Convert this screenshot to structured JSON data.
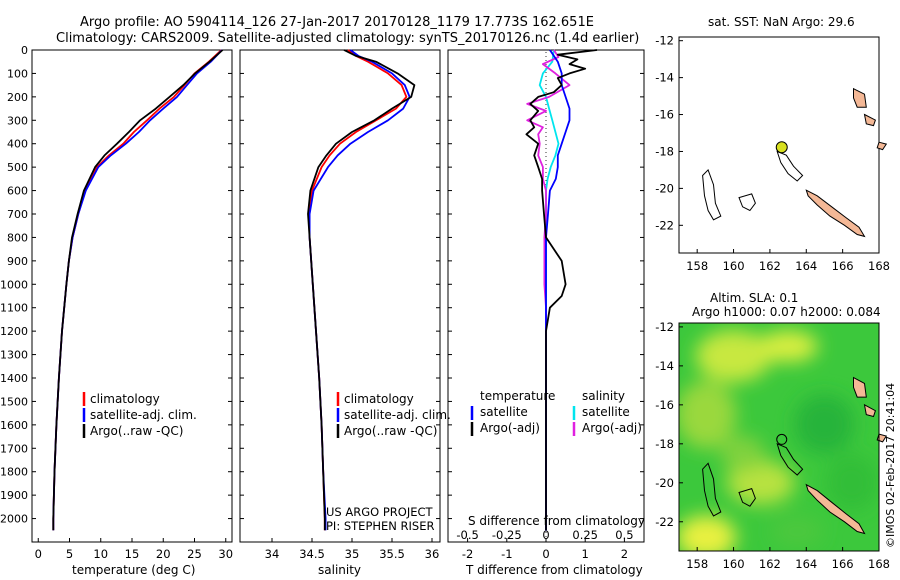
{
  "header": {
    "line1": "Argo profile: AO 5904114_126 27-Jan-2017 20170128_1179 17.773S 162.651E",
    "line2": "Climatology: CARS2009. Satellite-adjusted climatology: synTS_20170126.nc (1.4d earlier)"
  },
  "credit": {
    "line1": "US ARGO PROJECT",
    "line2": "PI: STEPHEN RISER",
    "imos": "©IMOS 02-Feb-2017 20:41:04"
  },
  "legends": {
    "profile": [
      "climatology",
      "satellite-adj. clim.",
      "Argo(..raw -QC)"
    ],
    "diff_temperature_title": "temperature",
    "diff_salinity_title": "salinity",
    "diff_satellite": "satellite",
    "diff_argo": "Argo(-adj)"
  },
  "maps": {
    "sst_title": "sat. SST: NaN Argo: 29.6",
    "sla_title1": "Altim. SLA: 0.1",
    "sla_title2": "Argo h1000: 0.07 h2000: 0.084"
  },
  "colors": {
    "climatology": "#ff0000",
    "satellite": "#0000ff",
    "argo": "#000000",
    "sat_salinity": "#00e5ee",
    "argo_salinity": "#e020e0",
    "land": "#f4b896",
    "float_marker": "#d8e020",
    "sla_green": "#3cc83c",
    "sla_yellow": "#e8f040"
  },
  "chart_data": [
    {
      "type": "line",
      "title": "",
      "xlabel": "temperature (deg C)",
      "ylabel": "",
      "xlim": [
        -1,
        31
      ],
      "ylim": [
        2100,
        0
      ],
      "x_ticks": [
        0,
        5,
        10,
        15,
        20,
        25,
        30
      ],
      "y_ticks": [
        0,
        100,
        200,
        300,
        400,
        500,
        600,
        700,
        800,
        900,
        1000,
        1100,
        1200,
        1300,
        1400,
        1500,
        1600,
        1700,
        1800,
        1900,
        2000
      ],
      "series": [
        {
          "name": "climatology",
          "depth": [
            0,
            50,
            100,
            150,
            200,
            250,
            300,
            350,
            400,
            450,
            500,
            600,
            700,
            800,
            900,
            1000,
            1200,
            1400,
            1600,
            1800,
            2000,
            2050
          ],
          "values": [
            29.3,
            27.3,
            25.0,
            23.4,
            21.7,
            19.4,
            17.4,
            15.3,
            13.6,
            11.3,
            9.4,
            7.5,
            6.4,
            5.5,
            4.9,
            4.5,
            3.8,
            3.3,
            2.9,
            2.6,
            2.4,
            2.4
          ]
        },
        {
          "name": "satellite-adj. clim.",
          "depth": [
            0,
            50,
            100,
            150,
            200,
            250,
            300,
            350,
            400,
            450,
            500,
            600,
            700,
            800,
            900,
            1000,
            1200,
            1400,
            1600,
            1800,
            2000,
            2050
          ],
          "values": [
            29.4,
            27.6,
            25.4,
            23.8,
            22.2,
            20.0,
            17.9,
            16.1,
            14.0,
            11.6,
            9.6,
            7.6,
            6.4,
            5.5,
            4.9,
            4.5,
            3.8,
            3.3,
            2.9,
            2.6,
            2.4,
            2.4
          ]
        },
        {
          "name": "Argo(..raw -QC)",
          "depth": [
            0,
            50,
            100,
            150,
            200,
            250,
            300,
            350,
            400,
            450,
            500,
            600,
            700,
            800,
            900,
            1000,
            1200,
            1400,
            1600,
            1800,
            2000,
            2050
          ],
          "values": [
            29.5,
            27.4,
            25.1,
            23.2,
            21.0,
            18.8,
            16.3,
            14.5,
            12.6,
            10.6,
            9.1,
            7.3,
            6.3,
            5.4,
            4.9,
            4.5,
            3.8,
            3.3,
            2.9,
            2.6,
            2.4,
            2.4
          ]
        }
      ]
    },
    {
      "type": "line",
      "title": "",
      "xlabel": "salinity",
      "ylabel": "",
      "xlim": [
        33.6,
        36.1
      ],
      "ylim": [
        2100,
        0
      ],
      "x_ticks": [
        34,
        34.5,
        35,
        35.5,
        36
      ],
      "x_tick_labels": [
        "34",
        "34.5",
        "35",
        "35.5",
        "36"
      ],
      "series": [
        {
          "name": "climatology",
          "depth": [
            0,
            25,
            50,
            100,
            150,
            200,
            250,
            300,
            350,
            400,
            450,
            500,
            600,
            700,
            800,
            900,
            1000,
            1200,
            1400,
            1600,
            1800,
            2000,
            2050
          ],
          "values": [
            34.95,
            35.05,
            35.2,
            35.45,
            35.62,
            35.68,
            35.55,
            35.3,
            35.05,
            34.85,
            34.72,
            34.62,
            34.5,
            34.46,
            34.47,
            34.49,
            34.51,
            34.55,
            34.59,
            34.62,
            34.64,
            34.66,
            34.66
          ]
        },
        {
          "name": "satellite-adj. clim.",
          "depth": [
            0,
            25,
            50,
            100,
            150,
            200,
            250,
            300,
            350,
            400,
            450,
            500,
            600,
            700,
            800,
            900,
            1000,
            1200,
            1400,
            1600,
            1800,
            2000,
            2050
          ],
          "values": [
            34.98,
            35.08,
            35.25,
            35.5,
            35.66,
            35.72,
            35.64,
            35.45,
            35.2,
            34.98,
            34.82,
            34.7,
            34.52,
            34.47,
            34.47,
            34.49,
            34.51,
            34.55,
            34.59,
            34.62,
            34.64,
            34.67,
            34.67
          ]
        },
        {
          "name": "Argo(..raw -QC)",
          "depth": [
            0,
            25,
            50,
            100,
            150,
            200,
            250,
            300,
            350,
            400,
            450,
            500,
            600,
            700,
            800,
            900,
            1000,
            1200,
            1400,
            1600,
            1800,
            2000,
            2050
          ],
          "values": [
            34.9,
            35.05,
            35.3,
            35.57,
            35.78,
            35.74,
            35.5,
            35.28,
            35.0,
            34.8,
            34.68,
            34.58,
            34.48,
            34.45,
            34.47,
            34.49,
            34.51,
            34.55,
            34.59,
            34.62,
            34.64,
            34.66,
            34.66
          ]
        }
      ]
    },
    {
      "type": "line",
      "title": "",
      "xlabel": "T difference from climatology",
      "xlabel_top": "S difference from climatology",
      "ylabel": "",
      "xlim": [
        -2.5,
        2.5
      ],
      "ylim": [
        2100,
        0
      ],
      "x_ticks_T": [
        -2,
        -1,
        0,
        1,
        2
      ],
      "x_ticks_S": [
        "-0.5",
        "-0.25",
        "0",
        "0.25",
        "0.5"
      ],
      "series": [
        {
          "name": "satellite (temperature)",
          "depth": [
            0,
            50,
            100,
            150,
            200,
            250,
            300,
            350,
            400,
            450,
            500,
            550,
            600,
            700,
            800,
            1000,
            1200,
            1500,
            1800,
            2000,
            2050
          ],
          "values": [
            0.1,
            0.3,
            0.4,
            0.4,
            0.5,
            0.6,
            0.6,
            0.5,
            0.4,
            0.3,
            0.3,
            0.25,
            0.1,
            0.05,
            0.0,
            0.0,
            0.0,
            0.0,
            0.0,
            0.0,
            0.0
          ]
        },
        {
          "name": "Argo(-adj) (temperature)",
          "depth": [
            0,
            20,
            40,
            60,
            80,
            100,
            120,
            150,
            180,
            200,
            230,
            260,
            300,
            330,
            360,
            400,
            450,
            500,
            550,
            600,
            700,
            800,
            900,
            1000,
            1050,
            1100,
            1200,
            1500,
            1800,
            2000,
            2050
          ],
          "values": [
            1.3,
            0.3,
            0.8,
            0.6,
            1.0,
            0.6,
            0.3,
            0.4,
            0.2,
            -0.2,
            -0.4,
            -0.2,
            -0.4,
            -0.3,
            -0.5,
            -0.2,
            -0.3,
            -0.2,
            -0.1,
            -0.1,
            -0.05,
            0.0,
            0.4,
            0.5,
            0.4,
            0.1,
            0.0,
            0.0,
            0.0,
            0.0,
            0.0
          ]
        },
        {
          "name": "satellite (salinity)",
          "depth": [
            0,
            50,
            100,
            150,
            200,
            250,
            300,
            350,
            400,
            450,
            500,
            550,
            600,
            700,
            800,
            1000,
            1500,
            2000,
            2050
          ],
          "values": [
            0.05,
            0.04,
            -0.02,
            -0.04,
            0.0,
            0.02,
            0.04,
            0.06,
            0.08,
            0.06,
            0.03,
            0.01,
            0.0,
            0.0,
            0.0,
            0.0,
            0.0,
            0.0,
            0.0
          ]
        },
        {
          "name": "Argo(-adj) (salinity)",
          "depth": [
            0,
            30,
            60,
            100,
            150,
            200,
            230,
            260,
            300,
            330,
            360,
            400,
            450,
            500,
            550,
            600,
            700,
            800,
            900,
            1000,
            1100,
            1200,
            1500,
            2000,
            2050
          ],
          "values": [
            0.05,
            0.08,
            -0.02,
            0.06,
            0.15,
            0.02,
            -0.12,
            0.0,
            -0.12,
            -0.02,
            -0.05,
            -0.04,
            -0.05,
            -0.02,
            -0.02,
            0.0,
            0.0,
            -0.01,
            -0.01,
            -0.01,
            0.0,
            0.0,
            0.0,
            0.0,
            0.0
          ]
        }
      ]
    },
    {
      "type": "map",
      "title": "sat. SST: NaN Argo: 29.6",
      "lon_range": [
        157,
        168
      ],
      "lat_range": [
        -23.5,
        -11.8
      ],
      "x_ticks": [
        158,
        160,
        162,
        164,
        166,
        168
      ],
      "y_ticks": [
        -12,
        -14,
        -16,
        -18,
        -20,
        -22
      ],
      "float_position": {
        "lon": 162.651,
        "lat": -17.773
      }
    },
    {
      "type": "heatmap",
      "title": "Altim. SLA: 0.1 / Argo h1000: 0.07 h2000: 0.084",
      "lon_range": [
        157,
        168
      ],
      "lat_range": [
        -23.5,
        -11.8
      ],
      "x_ticks": [
        158,
        160,
        162,
        164,
        166,
        168
      ],
      "y_ticks": [
        -12,
        -14,
        -16,
        -18,
        -20,
        -22
      ],
      "float_position": {
        "lon": 162.651,
        "lat": -17.773
      }
    }
  ]
}
